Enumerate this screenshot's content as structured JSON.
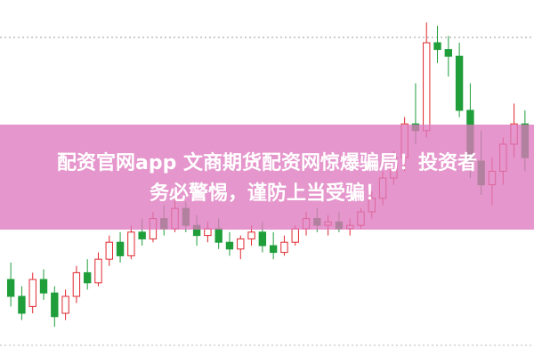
{
  "chart_data": {
    "type": "candlestick",
    "up_color": "#e0282f",
    "down_color": "#1f9e3a",
    "ylim": [
      0,
      100
    ],
    "open": [
      20,
      15,
      12,
      20,
      16,
      10,
      15,
      22,
      19,
      26,
      31,
      27,
      34,
      32,
      38,
      35,
      41,
      36,
      33,
      35,
      31,
      29,
      32,
      34,
      30,
      28,
      31,
      35,
      38,
      36,
      37,
      35,
      36,
      40,
      44,
      50,
      56,
      66,
      64,
      90,
      88,
      86,
      70,
      55,
      48,
      52,
      60,
      66
    ],
    "high": [
      25,
      18,
      22,
      23,
      18,
      17,
      24,
      26,
      28,
      33,
      34,
      36,
      38,
      40,
      42,
      44,
      43,
      39,
      37,
      38,
      34,
      33,
      36,
      37,
      34,
      33,
      36,
      40,
      41,
      39,
      40,
      38,
      41,
      46,
      52,
      58,
      68,
      78,
      96,
      95,
      92,
      90,
      78,
      64,
      56,
      62,
      72,
      70
    ],
    "low": [
      12,
      8,
      10,
      14,
      6,
      8,
      13,
      17,
      18,
      24,
      25,
      26,
      30,
      31,
      33,
      34,
      34,
      30,
      31,
      29,
      27,
      26,
      30,
      28,
      26,
      27,
      30,
      33,
      34,
      33,
      34,
      33,
      35,
      38,
      42,
      48,
      52,
      60,
      62,
      84,
      80,
      68,
      50,
      45,
      42,
      48,
      56,
      52
    ],
    "close": [
      15,
      10,
      20,
      16,
      9,
      15,
      22,
      19,
      26,
      31,
      27,
      34,
      32,
      38,
      35,
      41,
      36,
      33,
      35,
      31,
      29,
      32,
      34,
      30,
      28,
      31,
      35,
      38,
      36,
      37,
      35,
      36,
      40,
      44,
      50,
      56,
      66,
      64,
      90,
      88,
      86,
      70,
      55,
      48,
      52,
      60,
      66,
      56
    ]
  },
  "banner": {
    "lines": [
      "配资官网app 文商期货配资网惊爆骗局！投资者",
      "务必警惕，谨防上当受骗！"
    ]
  }
}
